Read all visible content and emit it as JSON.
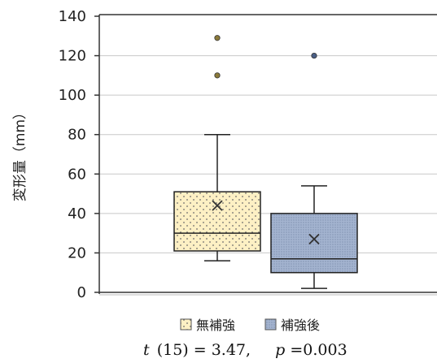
{
  "chart_data": {
    "type": "box",
    "ylabel": "変形量（mm）",
    "ylim": [
      0,
      140
    ],
    "yticks": [
      0,
      20,
      40,
      60,
      80,
      100,
      120,
      140
    ],
    "grid": true,
    "legend_placement": "bottom",
    "series": [
      {
        "name": "無補強",
        "color": "#fdf0c4",
        "pattern": "dots",
        "min": 16,
        "q1": 21,
        "median": 30,
        "q3": 51,
        "max": 80,
        "mean": 44,
        "outliers": [
          110,
          129
        ],
        "outlier_color": "#8b7a3a"
      },
      {
        "name": "補強後",
        "color": "#a4b4d0",
        "pattern": "fine-dots",
        "min": 2,
        "q1": 10,
        "median": 17,
        "q3": 40,
        "max": 54,
        "mean": 27,
        "outliers": [
          120
        ],
        "outlier_color": "#4a5f86"
      }
    ],
    "statistics": {
      "t_symbol": "t",
      "df_text": "(15)",
      "equals": "=",
      "t_value": "3.47,",
      "p_symbol": "p",
      "p_text": "=0.003"
    }
  }
}
